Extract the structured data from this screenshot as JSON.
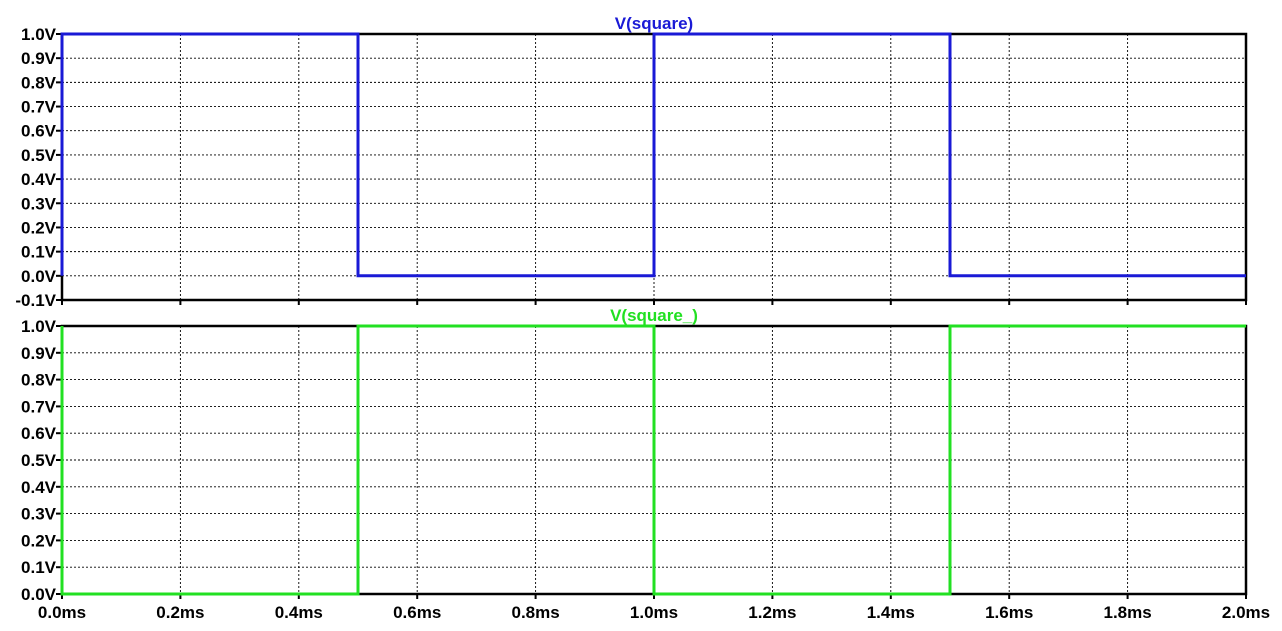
{
  "chart_data": [
    {
      "type": "line",
      "title": "V(square)",
      "color": "#1a1ad6",
      "x_ticks": [
        "0.0ms",
        "0.2ms",
        "0.4ms",
        "0.6ms",
        "0.8ms",
        "1.0ms",
        "1.2ms",
        "1.4ms",
        "1.6ms",
        "1.8ms",
        "2.0ms"
      ],
      "y_ticks": [
        "-0.1V",
        "0.0V",
        "0.1V",
        "0.2V",
        "0.3V",
        "0.4V",
        "0.5V",
        "0.6V",
        "0.7V",
        "0.8V",
        "0.9V",
        "1.0V"
      ],
      "xlim": [
        0,
        2.0
      ],
      "ylim": [
        -0.1,
        1.0
      ],
      "grid": true,
      "series": [
        {
          "name": "V(square)",
          "points": [
            [
              0,
              0
            ],
            [
              0,
              1
            ],
            [
              0.5,
              1
            ],
            [
              0.5,
              0
            ],
            [
              1.0,
              0
            ],
            [
              1.0,
              1
            ],
            [
              1.5,
              1
            ],
            [
              1.5,
              0
            ],
            [
              2.0,
              0
            ]
          ]
        }
      ]
    },
    {
      "type": "line",
      "title": "V(square_)",
      "color": "#22e022",
      "x_ticks": [
        "0.0ms",
        "0.2ms",
        "0.4ms",
        "0.6ms",
        "0.8ms",
        "1.0ms",
        "1.2ms",
        "1.4ms",
        "1.6ms",
        "1.8ms",
        "2.0ms"
      ],
      "y_ticks": [
        "0.0V",
        "0.1V",
        "0.2V",
        "0.3V",
        "0.4V",
        "0.5V",
        "0.6V",
        "0.7V",
        "0.8V",
        "0.9V",
        "1.0V"
      ],
      "xlim": [
        0,
        2.0
      ],
      "ylim": [
        0.0,
        1.0
      ],
      "grid": true,
      "series": [
        {
          "name": "V(square_)",
          "points": [
            [
              0,
              1
            ],
            [
              0,
              0
            ],
            [
              0.5,
              0
            ],
            [
              0.5,
              1
            ],
            [
              1.0,
              1
            ],
            [
              1.0,
              0
            ],
            [
              1.5,
              0
            ],
            [
              1.5,
              1
            ],
            [
              2.0,
              1
            ]
          ]
        }
      ]
    }
  ]
}
